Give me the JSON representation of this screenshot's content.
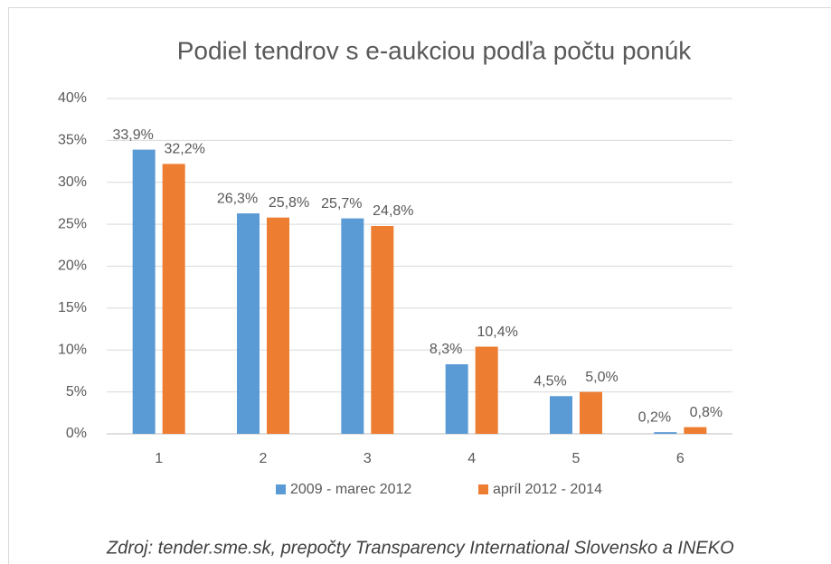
{
  "chart_data": {
    "type": "bar",
    "title": "Podiel tendrov s e-aukciou podľa počtu ponúk",
    "categories": [
      "1",
      "2",
      "3",
      "4",
      "5",
      "6"
    ],
    "series": [
      {
        "name": "2009 - marec 2012",
        "color": "#5b9bd5",
        "values": [
          33.9,
          26.3,
          25.7,
          8.3,
          4.5,
          0.2
        ],
        "value_labels": [
          "33,9%",
          "26,3%",
          "25,7%",
          "8,3%",
          "4,5%",
          "0,2%"
        ]
      },
      {
        "name": "apríl 2012 - 2014",
        "color": "#ed7d31",
        "values": [
          32.2,
          25.8,
          24.8,
          10.4,
          5.0,
          0.8
        ],
        "value_labels": [
          "32,2%",
          "25,8%",
          "24,8%",
          "10,4%",
          "5,0%",
          "0,8%"
        ]
      }
    ],
    "ylim": [
      0,
      40
    ],
    "yticks": [
      {
        "value": 0,
        "label": "0%"
      },
      {
        "value": 5,
        "label": "5%"
      },
      {
        "value": 10,
        "label": "10%"
      },
      {
        "value": 15,
        "label": "15%"
      },
      {
        "value": 20,
        "label": "20%"
      },
      {
        "value": 25,
        "label": "25%"
      },
      {
        "value": 30,
        "label": "30%"
      },
      {
        "value": 35,
        "label": "35%"
      },
      {
        "value": 40,
        "label": "40%"
      }
    ],
    "grid": true,
    "legend": "bottom",
    "source": "Zdroj: tender.sme.sk, prepočty Transparency International Slovensko a INEKO"
  }
}
